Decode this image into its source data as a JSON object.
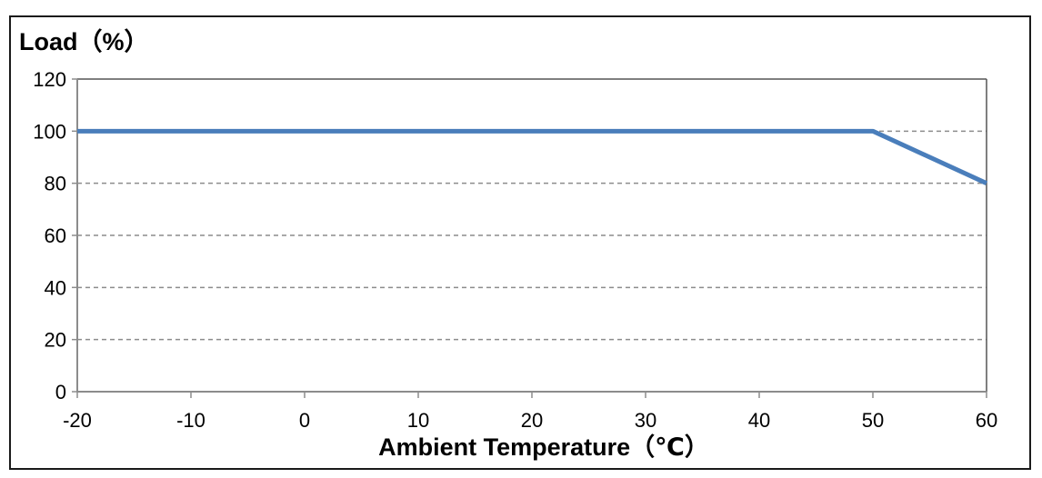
{
  "chart_data": {
    "type": "line",
    "title": "",
    "ylabel": "Load（%）",
    "xlabel": "Ambient Temperature（℃）",
    "x_ticks": [
      "-20",
      "-10",
      "0",
      "10",
      "20",
      "30",
      "40",
      "50",
      "60"
    ],
    "y_ticks": [
      "0",
      "20",
      "40",
      "60",
      "80",
      "100",
      "120"
    ],
    "xlim": [
      -20,
      60
    ],
    "ylim": [
      0,
      120
    ],
    "grid": "horizontal-dashed",
    "series": [
      {
        "x": [
          -20,
          50,
          60
        ],
        "y": [
          100,
          100,
          80
        ],
        "color": "#4a7ebb"
      }
    ]
  },
  "colors": {
    "line": "#4a7ebb",
    "grid": "#8c8c8c",
    "axis": "#8c8c8c",
    "frame": "#1a1a1a"
  }
}
